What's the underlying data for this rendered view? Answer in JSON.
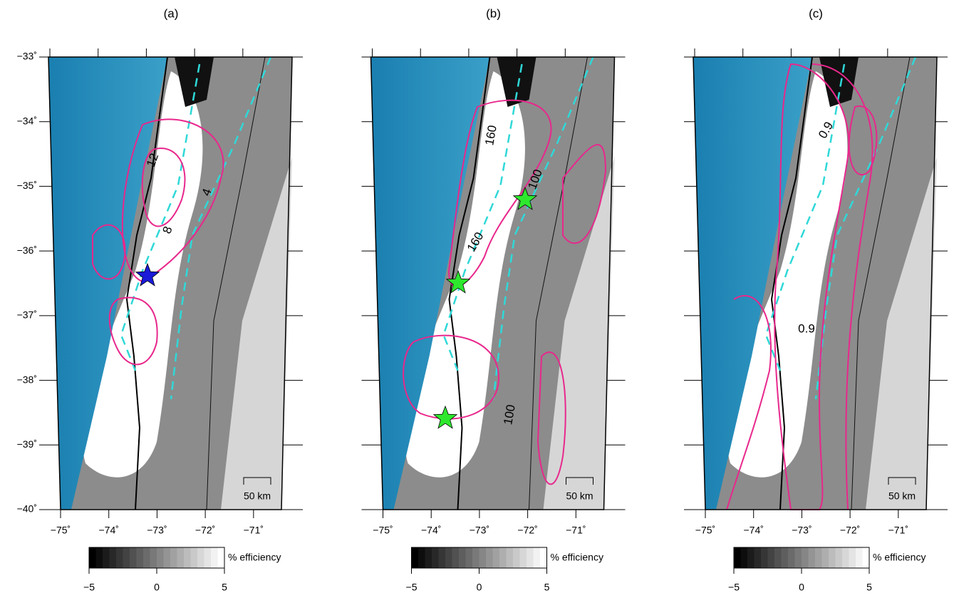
{
  "panels": [
    {
      "label": "(a)",
      "contour_labels": [
        "12",
        "8",
        "4"
      ],
      "scale_label": "50 km",
      "colorbar_label": "% efficiency"
    },
    {
      "label": "(b)",
      "contour_labels": [
        "160",
        "100",
        "160",
        "100"
      ],
      "scale_label": "50 km",
      "colorbar_label": "% efficiency"
    },
    {
      "label": "(c)",
      "contour_labels": [
        "0.9",
        "0.9"
      ],
      "scale_label": "50 km",
      "colorbar_label": "% efficiency"
    }
  ],
  "lat_lim": [
    -40,
    -33
  ],
  "lon_lim": [
    -75,
    -70.2
  ],
  "lat_ticks": [
    {
      "value": -33,
      "label": "−33˚"
    },
    {
      "value": -34,
      "label": "−34˚"
    },
    {
      "value": -35,
      "label": "−35˚"
    },
    {
      "value": -36,
      "label": "−36˚"
    },
    {
      "value": -37,
      "label": "−37˚"
    },
    {
      "value": -38,
      "label": "−38˚"
    },
    {
      "value": -39,
      "label": "−39˚"
    },
    {
      "value": -40,
      "label": "−40˚"
    }
  ],
  "lon_ticks": [
    {
      "value": -75,
      "label": "−75˚"
    },
    {
      "value": -74,
      "label": "−74˚"
    },
    {
      "value": -73,
      "label": "−73˚"
    },
    {
      "value": -72,
      "label": "−72˚"
    },
    {
      "value": -71,
      "label": "−71˚"
    }
  ],
  "colorbar_lim": [
    -5,
    5
  ],
  "colorbar_ticks": [
    {
      "value": -5,
      "label": "−5"
    },
    0,
    5
  ]
}
